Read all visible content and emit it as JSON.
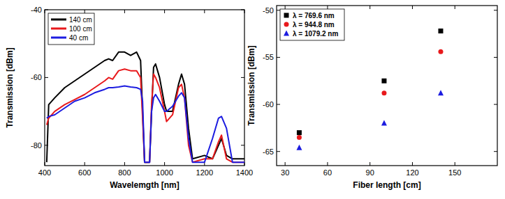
{
  "chart_data": [
    {
      "type": "line",
      "x_label": "Wavelemgth [nm]",
      "y_label": "Transmission [dBm]",
      "x": [
        410,
        420,
        450,
        500,
        550,
        600,
        650,
        700,
        720,
        740,
        770,
        800,
        830,
        860,
        880,
        890,
        900,
        925,
        935,
        945,
        955,
        975,
        1000,
        1010,
        1040,
        1070,
        1085,
        1100,
        1120,
        1140,
        1200,
        1240,
        1270,
        1285,
        1310,
        1340,
        1400
      ],
      "series": [
        {
          "name": "140 cm",
          "color": "#000000",
          "values": [
            -85,
            -68,
            -66,
            -63,
            -61,
            -59,
            -57,
            -55,
            -54.5,
            -55,
            -52.5,
            -52.5,
            -53.5,
            -52.5,
            -55,
            -70,
            -85,
            -85,
            -70,
            -57,
            -56,
            -60,
            -68,
            -70,
            -70,
            -62,
            -59,
            -62,
            -75,
            -84,
            -83,
            -84,
            -80,
            -78,
            -83,
            -84,
            -84
          ]
        },
        {
          "name": "100 cm",
          "color": "#e8191c",
          "values": [
            -74,
            -72,
            -70,
            -68,
            -66.5,
            -65,
            -63,
            -61,
            -60,
            -60.5,
            -58,
            -57.5,
            -58,
            -58,
            -60,
            -72,
            -85,
            -85,
            -68,
            -59,
            -60,
            -63,
            -70,
            -73,
            -71,
            -63,
            -62,
            -66,
            -80,
            -85,
            -84,
            -84,
            -79,
            -77,
            -84,
            -85,
            -85
          ]
        },
        {
          "name": "40 cm",
          "color": "#1c1ce0",
          "values": [
            -72,
            -71.5,
            -71,
            -69,
            -67,
            -66,
            -64.5,
            -63.5,
            -63,
            -63,
            -62.8,
            -62.5,
            -62.8,
            -63,
            -63.5,
            -67,
            -85,
            -85,
            -70,
            -66,
            -65,
            -67,
            -70,
            -70,
            -68.5,
            -65.5,
            -64.5,
            -66,
            -78,
            -85,
            -85,
            -78,
            -72,
            -71.5,
            -75,
            -85,
            -85
          ]
        }
      ],
      "xlim": [
        400,
        1400
      ],
      "xticks": [
        400,
        600,
        800,
        1000,
        1200,
        1400
      ],
      "ylim": [
        -86,
        -40
      ],
      "yticks": [
        -80,
        -60,
        -40
      ],
      "legend": "upper left",
      "grid": false
    },
    {
      "type": "scatter",
      "x_label": "Fiber length [cm]",
      "y_label": "Transmission [dBm]",
      "x": [
        40,
        100,
        140
      ],
      "series": [
        {
          "name": "λ =  769.6 nm",
          "color": "#000000",
          "marker": "square",
          "values": [
            -63,
            -57.5,
            -52.2
          ]
        },
        {
          "name": "λ =  944.8 nm",
          "color": "#e8191c",
          "marker": "circle",
          "values": [
            -63.5,
            -58.8,
            -54.4
          ]
        },
        {
          "name": "λ = 1079.2 nm",
          "color": "#1c1ce0",
          "marker": "triangle",
          "values": [
            -64.6,
            -62,
            -58.8
          ]
        }
      ],
      "xlim": [
        24,
        180
      ],
      "xticks": [
        30,
        60,
        90,
        120,
        150
      ],
      "ylim": [
        -66.5,
        -49.5
      ],
      "yticks": [
        -65,
        -60,
        -55,
        -50
      ],
      "legend": "upper left",
      "grid": false
    }
  ]
}
